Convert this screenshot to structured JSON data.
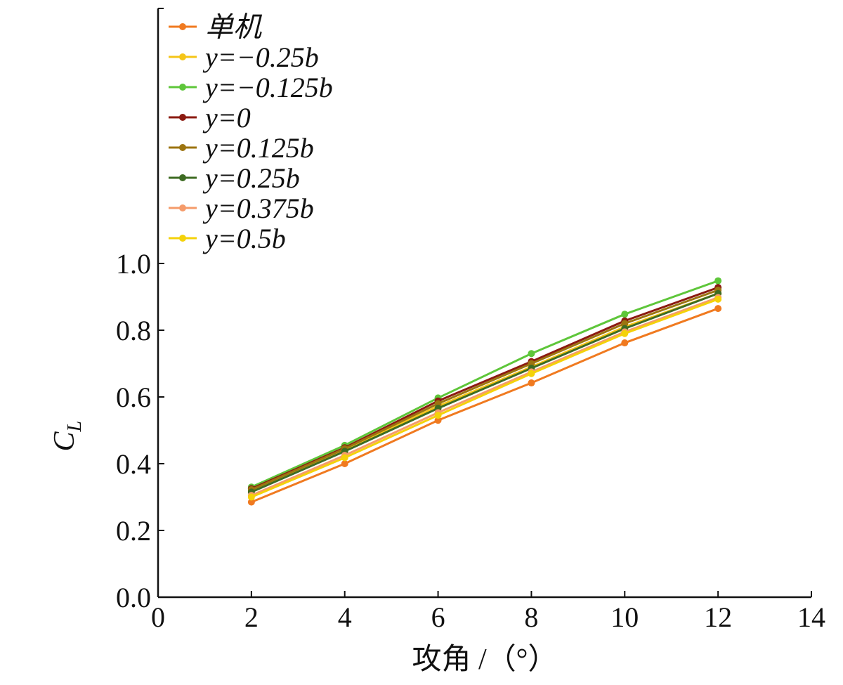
{
  "chart_data": {
    "type": "line",
    "xlabel": "攻角 /（°）",
    "ylabel": "C_L",
    "xlim": [
      0,
      14
    ],
    "ylim": [
      0,
      1.0
    ],
    "x_ticks": [
      "0",
      "2",
      "4",
      "6",
      "8",
      "10",
      "12",
      "14"
    ],
    "y_ticks": [
      "0.0",
      "0.2",
      "0.4",
      "0.6",
      "0.8",
      "1.0"
    ],
    "grid": false,
    "legend_position": "top-left",
    "x": [
      2,
      4,
      6,
      8,
      10,
      12
    ],
    "series": [
      {
        "name": "单机",
        "color": "#f07a20",
        "values": [
          0.285,
          0.4,
          0.53,
          0.642,
          0.762,
          0.865
        ]
      },
      {
        "name": "y=−0.25b",
        "color": "#f5c518",
        "values": [
          0.318,
          0.44,
          0.572,
          0.69,
          0.81,
          0.91
        ]
      },
      {
        "name": "y=−0.125b",
        "color": "#5ec63a",
        "values": [
          0.33,
          0.455,
          0.597,
          0.73,
          0.848,
          0.948
        ]
      },
      {
        "name": "y=0",
        "color": "#8b1a10",
        "values": [
          0.325,
          0.448,
          0.588,
          0.706,
          0.828,
          0.928
        ]
      },
      {
        "name": "y=0.125b",
        "color": "#9c7410",
        "values": [
          0.322,
          0.445,
          0.58,
          0.7,
          0.82,
          0.92
        ]
      },
      {
        "name": "y=0.25b",
        "color": "#3d6b22",
        "values": [
          0.315,
          0.437,
          0.566,
          0.686,
          0.805,
          0.91
        ]
      },
      {
        "name": "y=0.375b",
        "color": "#f59b6a",
        "values": [
          0.305,
          0.425,
          0.553,
          0.675,
          0.795,
          0.898
        ]
      },
      {
        "name": "y=0.5b",
        "color": "#f4d20a",
        "values": [
          0.3,
          0.418,
          0.545,
          0.67,
          0.79,
          0.893
        ]
      }
    ]
  }
}
